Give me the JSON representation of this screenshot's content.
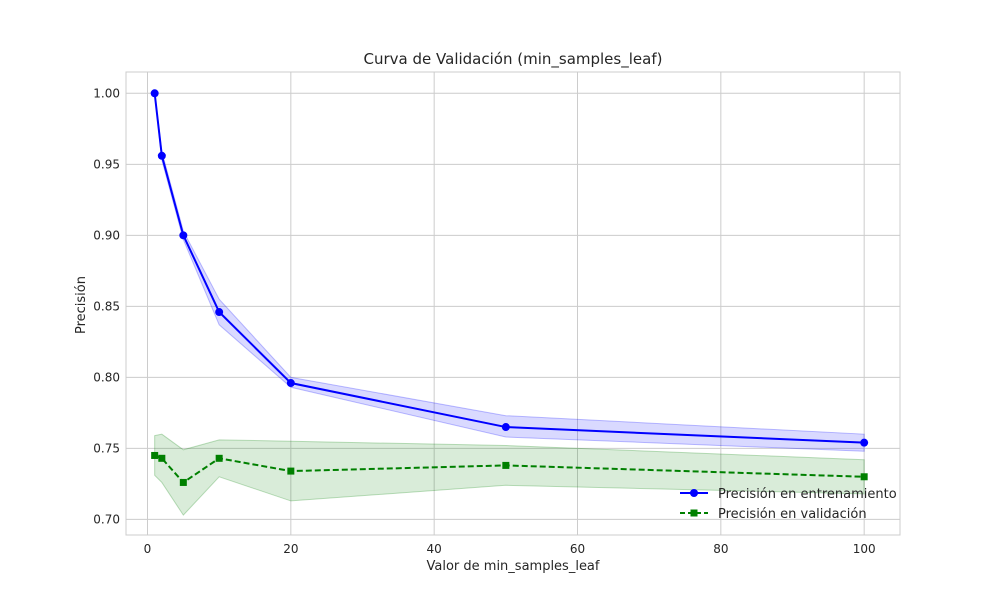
{
  "chart_data": {
    "type": "line",
    "title": "Curva de Validación (min_samples_leaf)",
    "xlabel": "Valor de min_samples_leaf",
    "ylabel": "Precisión",
    "xlim": [
      -3,
      105
    ],
    "ylim": [
      0.689,
      1.015
    ],
    "xticks": [
      0,
      20,
      40,
      60,
      80,
      100
    ],
    "yticks": [
      0.7,
      0.75,
      0.8,
      0.85,
      0.9,
      0.95,
      1.0
    ],
    "xtick_labels": [
      "0",
      "20",
      "40",
      "60",
      "80",
      "100"
    ],
    "ytick_labels": [
      "0.70",
      "0.75",
      "0.80",
      "0.85",
      "0.90",
      "0.95",
      "1.00"
    ],
    "grid": true,
    "legend_position": "lower-right",
    "x": [
      1,
      2,
      5,
      10,
      20,
      50,
      100
    ],
    "series": [
      {
        "name": "Precisión en entrenamiento",
        "color": "#0000ff",
        "fill_color": "#0000ff",
        "marker": "circle",
        "line_style": "solid",
        "values": [
          1.0,
          0.956,
          0.9,
          0.846,
          0.796,
          0.765,
          0.754
        ],
        "band_lower": [
          1.0,
          0.953,
          0.897,
          0.837,
          0.793,
          0.758,
          0.748
        ],
        "band_upper": [
          1.0,
          0.959,
          0.903,
          0.855,
          0.8,
          0.773,
          0.76
        ]
      },
      {
        "name": "Precisión en validación",
        "color": "#008000",
        "fill_color": "#008000",
        "marker": "square",
        "line_style": "dashed",
        "values": [
          0.745,
          0.743,
          0.726,
          0.743,
          0.734,
          0.738,
          0.73
        ],
        "band_lower": [
          0.731,
          0.726,
          0.703,
          0.73,
          0.713,
          0.724,
          0.718
        ],
        "band_upper": [
          0.759,
          0.76,
          0.749,
          0.756,
          0.755,
          0.752,
          0.742
        ]
      }
    ]
  }
}
